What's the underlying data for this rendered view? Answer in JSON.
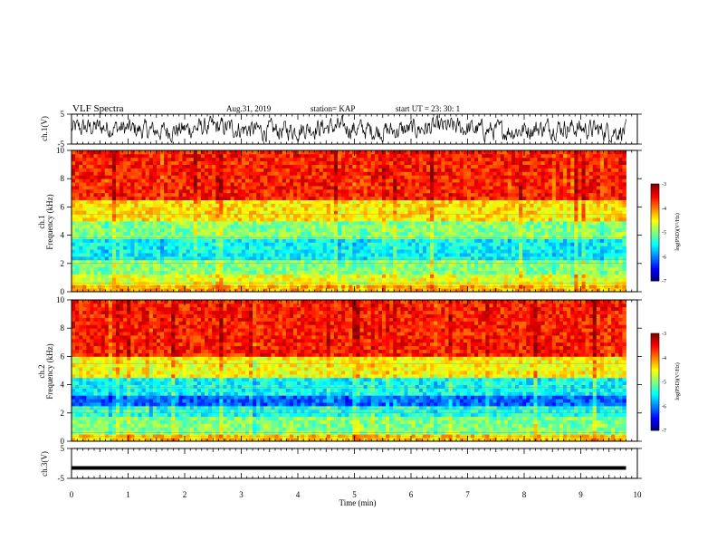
{
  "header": {
    "title": "VLF Spectra",
    "date": "Aug.31, 2019",
    "station": "station= KAP",
    "start": "start  UT =   23: 30: 1"
  },
  "chart_data": [
    {
      "type": "line",
      "id": "ch1-waveform",
      "ylabel": "ch.1(V)",
      "ylim": [
        -5,
        5
      ],
      "ytick_labels": [
        "5",
        "-5"
      ],
      "xlim": [
        0,
        10
      ],
      "data_extent_min": 9.8,
      "description_level": "noisy broadband waveform around 0 V, amplitude mostly within ±4 V"
    },
    {
      "type": "heatmap",
      "id": "ch1-spectrogram",
      "ylabel": "ch.1\nFrequency  (kHz)",
      "ylabel_line1": "ch.1",
      "ylabel_line2": "Frequency  (kHz)",
      "ylim": [
        0,
        10
      ],
      "ytick_labels": [
        "0",
        "2",
        "4",
        "6",
        "8",
        "10"
      ],
      "xlim": [
        0,
        10
      ],
      "data_extent_min": 9.8,
      "colorbar": {
        "label": "log(PSD)(V²/Hz)",
        "range": [
          -7,
          -3
        ],
        "tick_labels": [
          "-3",
          "-4",
          "-5",
          "-6",
          "-7"
        ]
      },
      "bands_logpsd": [
        {
          "f_lo": 0.0,
          "f_hi": 0.5,
          "level": -4.2
        },
        {
          "f_lo": 0.5,
          "f_hi": 1.2,
          "level": -4.6
        },
        {
          "f_lo": 1.2,
          "f_hi": 2.3,
          "level": -5.0
        },
        {
          "f_lo": 2.3,
          "f_hi": 3.8,
          "level": -5.5
        },
        {
          "f_lo": 3.8,
          "f_hi": 5.0,
          "level": -5.0
        },
        {
          "f_lo": 5.0,
          "f_hi": 6.5,
          "level": -4.4
        },
        {
          "f_lo": 6.5,
          "f_hi": 10.0,
          "level": -3.6
        }
      ]
    },
    {
      "type": "heatmap",
      "id": "ch2-spectrogram",
      "ylabel_line1": "ch.2",
      "ylabel_line2": "Frequency  (kHz)",
      "ylim": [
        0,
        10
      ],
      "ytick_labels": [
        "0",
        "2",
        "4",
        "6",
        "8",
        "10"
      ],
      "xlim": [
        0,
        10
      ],
      "data_extent_min": 9.8,
      "colorbar": {
        "label": "log(PSD)(V²/Hz)",
        "range": [
          -7,
          -3
        ],
        "tick_labels": [
          "-3",
          "-4",
          "-5",
          "-6",
          "-7"
        ]
      },
      "bands_logpsd": [
        {
          "f_lo": 0.0,
          "f_hi": 0.5,
          "level": -4.3
        },
        {
          "f_lo": 0.5,
          "f_hi": 1.8,
          "level": -5.0
        },
        {
          "f_lo": 1.8,
          "f_hi": 2.4,
          "level": -5.4
        },
        {
          "f_lo": 2.4,
          "f_hi": 3.3,
          "level": -6.1
        },
        {
          "f_lo": 3.3,
          "f_hi": 4.5,
          "level": -5.5
        },
        {
          "f_lo": 4.5,
          "f_hi": 6.0,
          "level": -4.5
        },
        {
          "f_lo": 6.0,
          "f_hi": 10.0,
          "level": -3.6
        }
      ]
    },
    {
      "type": "line",
      "id": "ch3-waveform",
      "ylabel": "ch.3(V)",
      "ylim": [
        -5,
        5
      ],
      "ytick_labels": [
        "5",
        "-5"
      ],
      "xlim": [
        0,
        10
      ],
      "data_extent_min": 9.8,
      "constant_value": -1.5,
      "xlabel": "Time  (min)",
      "xtick_labels": [
        "0",
        "1",
        "2",
        "3",
        "4",
        "5",
        "6",
        "7",
        "8",
        "9",
        "10"
      ]
    }
  ]
}
